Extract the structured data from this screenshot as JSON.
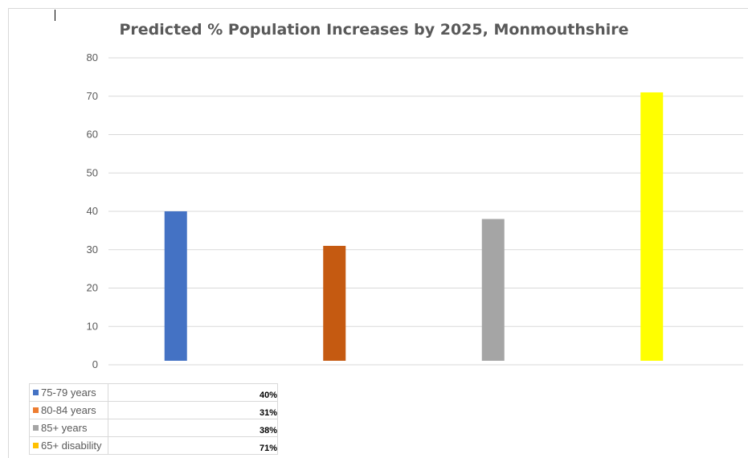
{
  "chart_data": {
    "type": "bar",
    "title": "Predicted % Population Increases by 2025, Monmouthshire",
    "xlabel": "",
    "ylabel": "",
    "ylim": [
      0,
      80
    ],
    "yticks": [
      "0",
      "10",
      "20",
      "30",
      "40",
      "50",
      "60",
      "70",
      "80"
    ],
    "grid": true,
    "categories": [
      "75-79 years",
      "80-84 years",
      "85+ years",
      "65+ disability"
    ],
    "values": [
      40,
      31,
      38,
      71
    ],
    "colors": [
      "#4472c4",
      "#c55a11",
      "#a5a5a5",
      "#ffff00"
    ],
    "legend": [
      {
        "label": "75-79 years",
        "value": "40%",
        "color": "#4472c4"
      },
      {
        "label": "80-84 years",
        "value": "31%",
        "color": "#ed7d31"
      },
      {
        "label": "85+ years",
        "value": "38%",
        "color": "#a5a5a5"
      },
      {
        "label": "65+ disability",
        "value": "71%",
        "color": "#ffc000"
      }
    ]
  }
}
